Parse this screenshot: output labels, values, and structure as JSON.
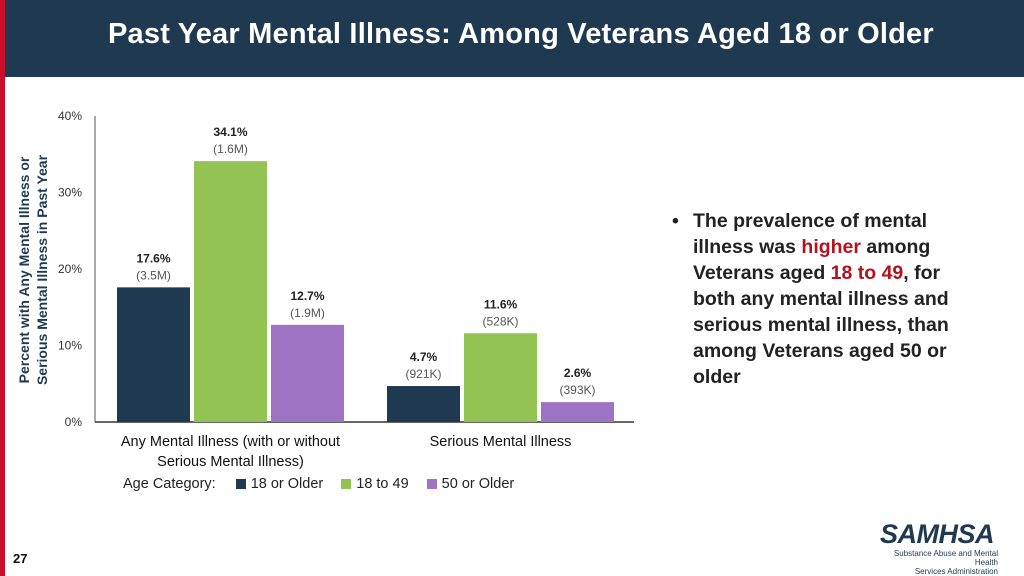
{
  "slide": {
    "title": "Past Year Mental Illness: Among Veterans Aged 18 or Older",
    "page_number": "27"
  },
  "bullet": {
    "parts": [
      {
        "text": "The prevalence of mental illness was ",
        "highlight": false
      },
      {
        "text": "higher",
        "highlight": true
      },
      {
        "text": " among Veterans aged ",
        "highlight": false
      },
      {
        "text": "18 to 49",
        "highlight": true
      },
      {
        "text": ", for both any mental illness and serious mental illness, than among Veterans aged 50 or older",
        "highlight": false
      }
    ]
  },
  "logo": {
    "name": "SAMHSA",
    "subtitle_line1": "Substance Abuse and Mental Health",
    "subtitle_line2": "Services Administration"
  },
  "colors": {
    "header": "#1f3a50",
    "accent_red": "#b3121f",
    "series_18_or_older": "#1f3a50",
    "series_18_to_49": "#92c353",
    "series_50_or_older": "#9e73c4"
  },
  "chart_data": {
    "type": "bar",
    "title": "",
    "ylabel_line1": "Percent with Any Mental Illness or",
    "ylabel_line2": "Serious Mental Illness in Past Year",
    "xlabel": "",
    "ylim": [
      0,
      40
    ],
    "yticks": [
      {
        "value": 0,
        "label": "0%"
      },
      {
        "value": 10,
        "label": "10%"
      },
      {
        "value": 20,
        "label": "20%"
      },
      {
        "value": 30,
        "label": "30%"
      },
      {
        "value": 40,
        "label": "40%"
      }
    ],
    "categories": [
      {
        "line1": "Any Mental Illness (with or without",
        "line2": "Serious Mental Illness)"
      },
      {
        "line1": "Serious Mental Illness",
        "line2": ""
      }
    ],
    "legend_title": "Age Category:",
    "series": [
      {
        "name": "18 or Older",
        "color": "#1f3a50",
        "values": [
          17.6,
          4.7
        ],
        "value_labels": [
          "17.6%",
          "4.7%"
        ],
        "count_labels": [
          "(3.5M)",
          "(921K)"
        ]
      },
      {
        "name": "18 to 49",
        "color": "#92c353",
        "values": [
          34.1,
          11.6
        ],
        "value_labels": [
          "34.1%",
          "11.6%"
        ],
        "count_labels": [
          "(1.6M)",
          "(528K)"
        ]
      },
      {
        "name": "50 or Older",
        "color": "#9e73c4",
        "values": [
          12.7,
          2.6
        ],
        "value_labels": [
          "12.7%",
          "2.6%"
        ],
        "count_labels": [
          "(1.9M)",
          "(393K)"
        ]
      }
    ]
  }
}
